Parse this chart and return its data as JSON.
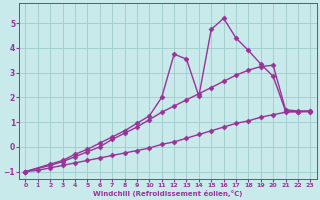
{
  "background_color": "#c8eaea",
  "line_color": "#993399",
  "grid_color": "#a0cccc",
  "xlabel": "Windchill (Refroidissement éolien,°C)",
  "xlabel_color": "#993399",
  "tick_color": "#993399",
  "ylim": [
    -1.3,
    5.8
  ],
  "xlim": [
    -0.5,
    23.5
  ],
  "yticks": [
    -1,
    0,
    1,
    2,
    3,
    4,
    5
  ],
  "xticks": [
    0,
    1,
    2,
    3,
    4,
    5,
    6,
    7,
    8,
    9,
    10,
    11,
    12,
    13,
    14,
    15,
    16,
    17,
    18,
    19,
    20,
    21,
    22,
    23
  ],
  "series1_x": [
    0,
    1,
    2,
    3,
    4,
    5,
    6,
    7,
    8,
    9,
    10,
    11,
    12,
    13,
    14,
    15,
    16,
    17,
    18,
    19,
    20,
    21,
    22,
    23
  ],
  "series1_y": [
    -1.0,
    -0.95,
    -0.85,
    -0.75,
    -0.65,
    -0.55,
    -0.45,
    -0.35,
    -0.25,
    -0.15,
    -0.05,
    0.1,
    0.2,
    0.35,
    0.5,
    0.65,
    0.8,
    0.95,
    1.05,
    1.2,
    1.3,
    1.4,
    1.42,
    1.45
  ],
  "series2_x": [
    0,
    2,
    3,
    4,
    5,
    6,
    7,
    8,
    9,
    10,
    11,
    12,
    13,
    14,
    15,
    16,
    17,
    18,
    19,
    20,
    21,
    22,
    23
  ],
  "series2_y": [
    -1.0,
    -0.75,
    -0.6,
    -0.4,
    -0.2,
    0.0,
    0.3,
    0.55,
    0.8,
    1.1,
    1.4,
    1.65,
    1.9,
    2.15,
    2.4,
    2.65,
    2.9,
    3.1,
    3.25,
    3.3,
    1.5,
    1.45,
    1.45
  ],
  "series3_x": [
    0,
    2,
    3,
    4,
    5,
    6,
    7,
    8,
    9,
    10,
    11,
    12,
    13,
    14,
    15,
    16,
    17,
    18,
    19,
    20,
    21,
    22,
    23
  ],
  "series3_y": [
    -1.0,
    -0.7,
    -0.55,
    -0.3,
    -0.1,
    0.15,
    0.4,
    0.65,
    0.95,
    1.25,
    2.0,
    3.75,
    3.55,
    2.05,
    4.75,
    5.2,
    4.4,
    3.9,
    3.35,
    2.85,
    1.45,
    1.42,
    1.42
  ],
  "marker": "D",
  "markersize": 2.5,
  "linewidth": 1.0
}
